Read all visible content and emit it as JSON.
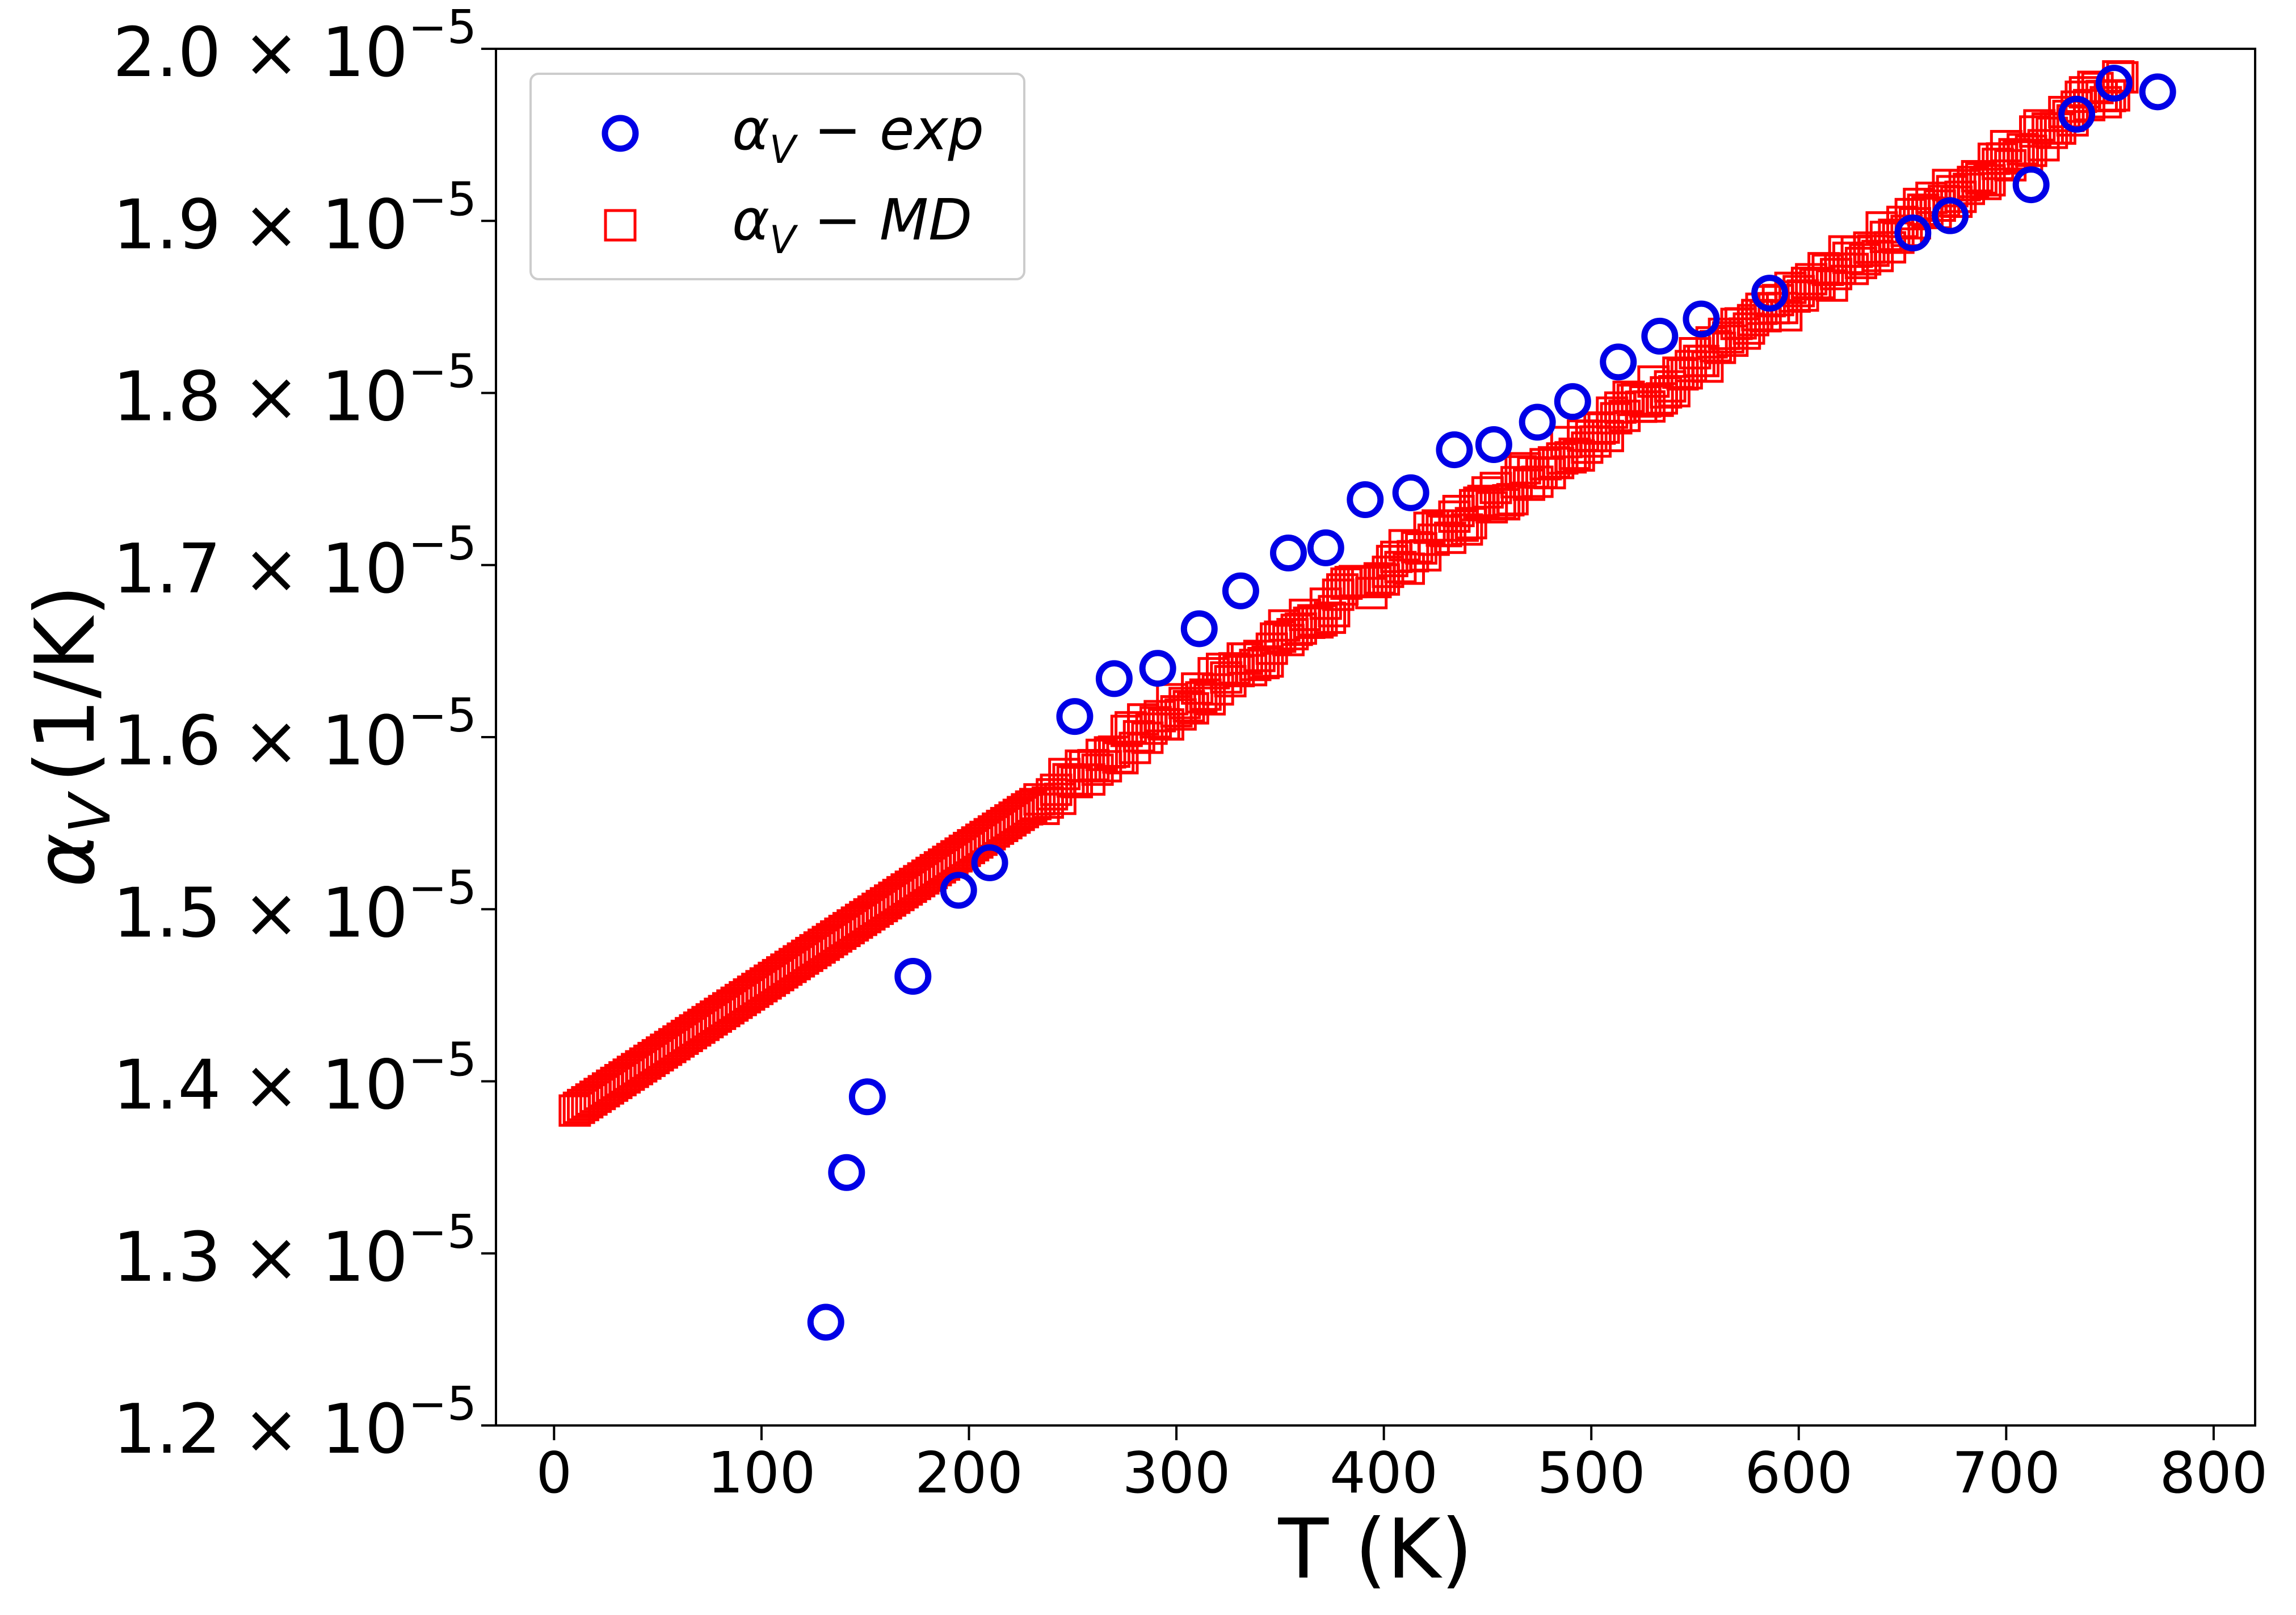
{
  "chart_data": {
    "type": "scatter",
    "title": "",
    "xlabel": "T (K)",
    "ylabel_symbol": "α",
    "ylabel_subscript": "V",
    "ylabel_unit": "(1/K)",
    "xlim": [
      -28,
      820
    ],
    "ylim": [
      1.2e-05,
      2e-05
    ],
    "x_ticks": [
      {
        "value": 0,
        "label": "0"
      },
      {
        "value": 100,
        "label": "100"
      },
      {
        "value": 200,
        "label": "200"
      },
      {
        "value": 300,
        "label": "300"
      },
      {
        "value": 400,
        "label": "400"
      },
      {
        "value": 500,
        "label": "500"
      },
      {
        "value": 600,
        "label": "600"
      },
      {
        "value": 700,
        "label": "700"
      },
      {
        "value": 800,
        "label": "800"
      }
    ],
    "y_ticks": [
      {
        "value": 1.2e-05,
        "mantissa": "1.2",
        "times": "×",
        "base": "10",
        "exponent": "−5"
      },
      {
        "value": 1.3e-05,
        "mantissa": "1.3",
        "times": "×",
        "base": "10",
        "exponent": "−5"
      },
      {
        "value": 1.4e-05,
        "mantissa": "1.4",
        "times": "×",
        "base": "10",
        "exponent": "−5"
      },
      {
        "value": 1.5e-05,
        "mantissa": "1.5",
        "times": "×",
        "base": "10",
        "exponent": "−5"
      },
      {
        "value": 1.6e-05,
        "mantissa": "1.6",
        "times": "×",
        "base": "10",
        "exponent": "−5"
      },
      {
        "value": 1.7e-05,
        "mantissa": "1.7",
        "times": "×",
        "base": "10",
        "exponent": "−5"
      },
      {
        "value": 1.8e-05,
        "mantissa": "1.8",
        "times": "×",
        "base": "10",
        "exponent": "−5"
      },
      {
        "value": 1.9e-05,
        "mantissa": "1.9",
        "times": "×",
        "base": "10",
        "exponent": "−5"
      },
      {
        "value": 2e-05,
        "mantissa": "2.0",
        "times": "×",
        "base": "10",
        "exponent": "−5"
      }
    ],
    "grid": false,
    "legend_position": "top-left",
    "series": [
      {
        "name": "αV − exp",
        "legend_symbol": "α",
        "legend_subscript": "V",
        "legend_suffix": " − exp",
        "marker": "circle-open",
        "color": "#0000e6",
        "points": [
          [
            131,
            1.26e-05
          ],
          [
            141,
            1.347e-05
          ],
          [
            151,
            1.391e-05
          ],
          [
            173,
            1.461e-05
          ],
          [
            195,
            1.511e-05
          ],
          [
            210,
            1.527e-05
          ],
          [
            251,
            1.612e-05
          ],
          [
            270,
            1.634e-05
          ],
          [
            291,
            1.64e-05
          ],
          [
            311,
            1.663e-05
          ],
          [
            331,
            1.685e-05
          ],
          [
            354,
            1.707e-05
          ],
          [
            372,
            1.71e-05
          ],
          [
            391,
            1.738e-05
          ],
          [
            413,
            1.742e-05
          ],
          [
            434,
            1.767e-05
          ],
          [
            453,
            1.77e-05
          ],
          [
            474,
            1.783e-05
          ],
          [
            491,
            1.795e-05
          ],
          [
            513,
            1.818e-05
          ],
          [
            533,
            1.833e-05
          ],
          [
            553,
            1.843e-05
          ],
          [
            586,
            1.858e-05
          ],
          [
            655,
            1.893e-05
          ],
          [
            673,
            1.903e-05
          ],
          [
            712,
            1.921e-05
          ],
          [
            734,
            1.962e-05
          ],
          [
            752,
            1.98e-05
          ],
          [
            773,
            1.975e-05
          ]
        ]
      },
      {
        "name": "αV − MD",
        "legend_symbol": "α",
        "legend_subscript": "V",
        "legend_suffix": " − MD",
        "marker": "square-open",
        "color": "#ff0000",
        "x_start": 10,
        "x_end": 756,
        "x_step": 2,
        "y_at_start": 1.383e-05,
        "y_at_end": 1.982e-05,
        "scatter_begins_at_x": 230,
        "scatter_amplitude": 8e-08
      }
    ]
  }
}
